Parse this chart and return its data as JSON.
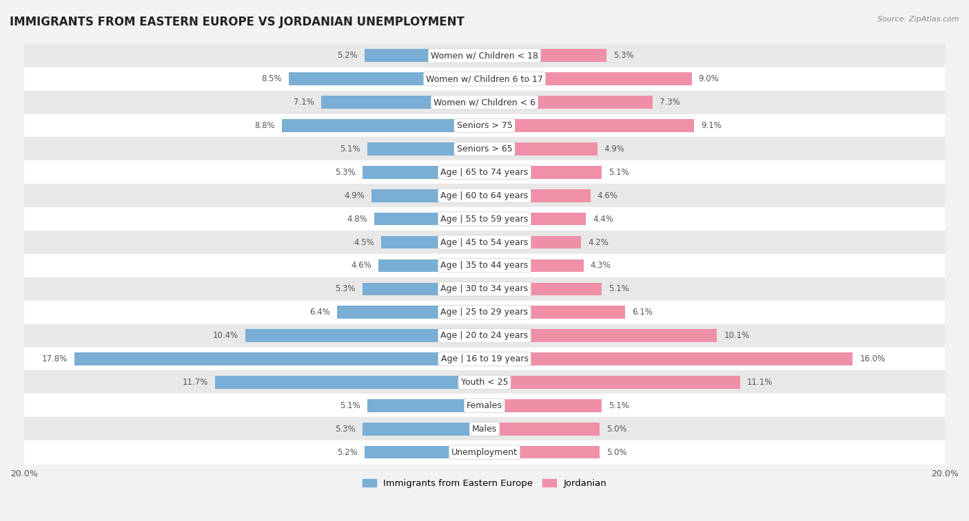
{
  "title": "IMMIGRANTS FROM EASTERN EUROPE VS JORDANIAN UNEMPLOYMENT",
  "source": "Source: ZipAtlas.com",
  "categories": [
    "Unemployment",
    "Males",
    "Females",
    "Youth < 25",
    "Age | 16 to 19 years",
    "Age | 20 to 24 years",
    "Age | 25 to 29 years",
    "Age | 30 to 34 years",
    "Age | 35 to 44 years",
    "Age | 45 to 54 years",
    "Age | 55 to 59 years",
    "Age | 60 to 64 years",
    "Age | 65 to 74 years",
    "Seniors > 65",
    "Seniors > 75",
    "Women w/ Children < 6",
    "Women w/ Children 6 to 17",
    "Women w/ Children < 18"
  ],
  "left_values": [
    5.2,
    5.3,
    5.1,
    11.7,
    17.8,
    10.4,
    6.4,
    5.3,
    4.6,
    4.5,
    4.8,
    4.9,
    5.3,
    5.1,
    8.8,
    7.1,
    8.5,
    5.2
  ],
  "right_values": [
    5.0,
    5.0,
    5.1,
    11.1,
    16.0,
    10.1,
    6.1,
    5.1,
    4.3,
    4.2,
    4.4,
    4.6,
    5.1,
    4.9,
    9.1,
    7.3,
    9.0,
    5.3
  ],
  "left_color": "#7aaed4",
  "right_color": "#f090a8",
  "left_label": "Immigrants from Eastern Europe",
  "right_label": "Jordanian",
  "axis_max": 20.0,
  "bg_color": "#f2f2f2",
  "row_bg_light": "#ffffff",
  "row_bg_dark": "#e8e8e8",
  "title_fontsize": 12,
  "label_fontsize": 9,
  "value_fontsize": 8.5
}
